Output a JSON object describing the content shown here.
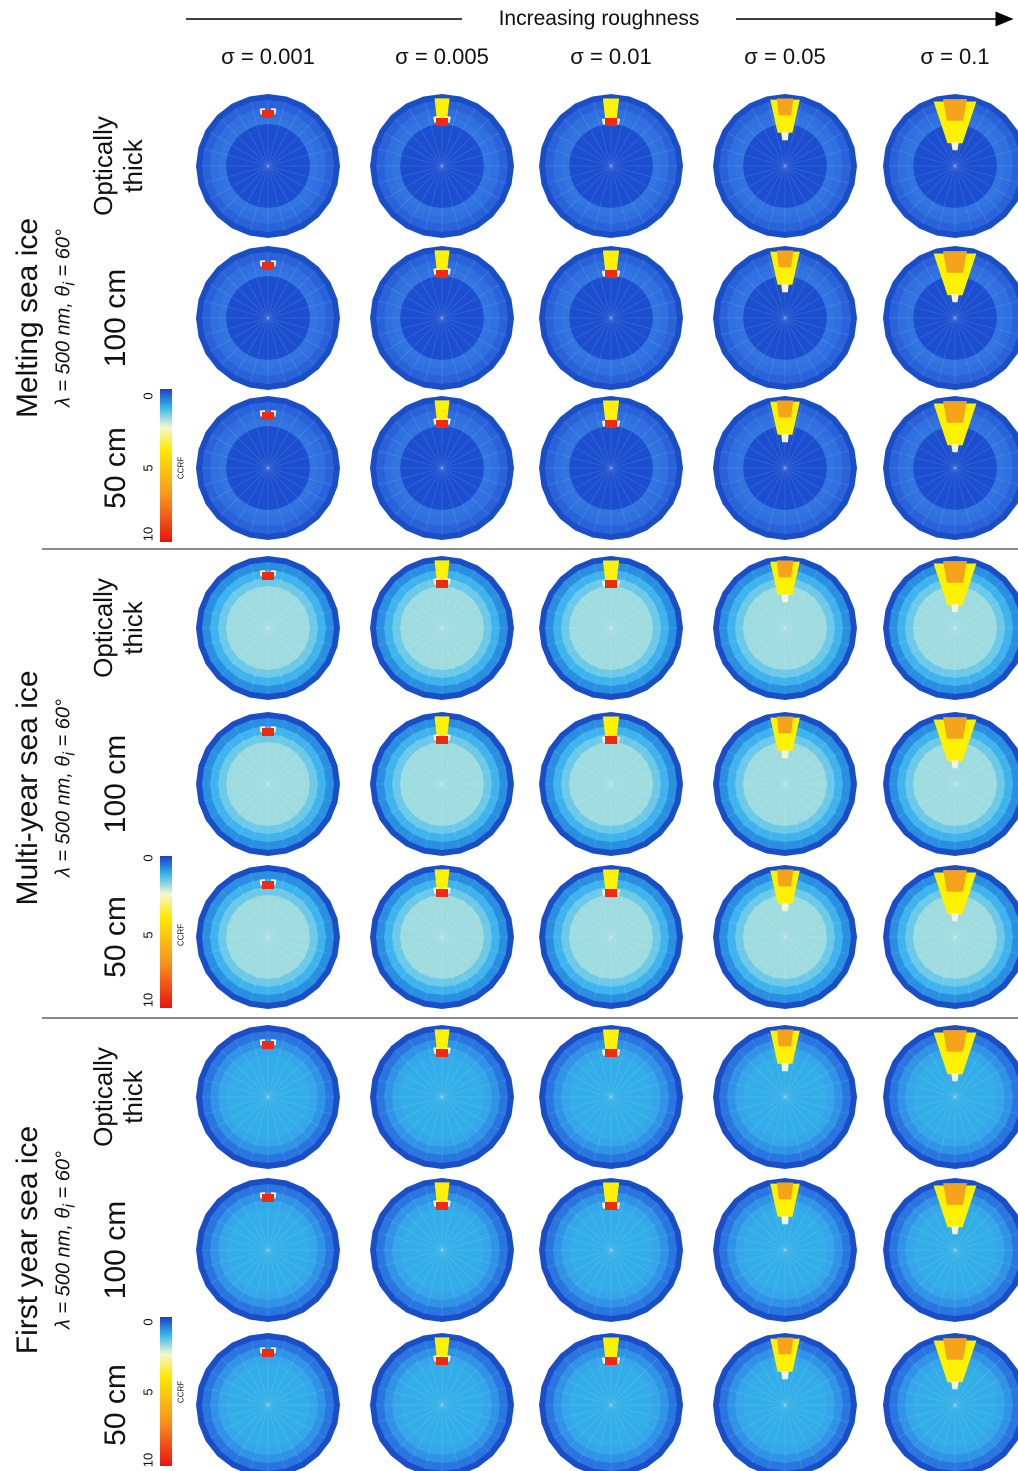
{
  "header": {
    "arrow_label": "Increasing roughness",
    "columns": [
      "σ = 0.001",
      "σ = 0.005",
      "σ = 0.01",
      "σ = 0.05",
      "σ = 0.1"
    ]
  },
  "groups": [
    {
      "title": "Melting sea ice",
      "subtitle": "λ = 500 nm, θ",
      "subtitle_sub": "i",
      "subtitle_end": " = 60°",
      "rows": [
        {
          "line1": "Optically",
          "line2": "thick"
        },
        {
          "line1": "100 cm",
          "line2": ""
        },
        {
          "line1": "50 cm",
          "line2": ""
        }
      ],
      "colorbar": {
        "label": "CCRF",
        "ticks": [
          "0",
          "5",
          "10"
        ]
      }
    },
    {
      "title": "Multi-year sea ice",
      "subtitle": "λ = 500 nm, θ",
      "subtitle_sub": "i",
      "subtitle_end": " = 60°",
      "rows": [
        {
          "line1": "Optically",
          "line2": "thick"
        },
        {
          "line1": "100 cm",
          "line2": ""
        },
        {
          "line1": "50 cm",
          "line2": ""
        }
      ],
      "colorbar": {
        "label": "CCRF",
        "ticks": [
          "0",
          "5",
          "10"
        ]
      }
    },
    {
      "title": "First year sea ice",
      "subtitle": "λ = 500 nm, θ",
      "subtitle_sub": "i",
      "subtitle_end": " = 60°",
      "rows": [
        {
          "line1": "Optically",
          "line2": "thick"
        },
        {
          "line1": "100 cm",
          "line2": ""
        },
        {
          "line1": "50 cm",
          "line2": ""
        }
      ],
      "colorbar": {
        "label": "CCRF",
        "ticks": [
          "0",
          "5",
          "10"
        ]
      }
    }
  ],
  "colors": {
    "melting_background": "#1c4fcf",
    "multiyear_background": "#9fdcdf",
    "firstyear_background": "#33aee8",
    "rim": "#1a4ec7",
    "hot": "#ee2a12",
    "warm": "#f6a31c",
    "yellow": "#fff200",
    "pale": "#f2f5d6"
  }
}
